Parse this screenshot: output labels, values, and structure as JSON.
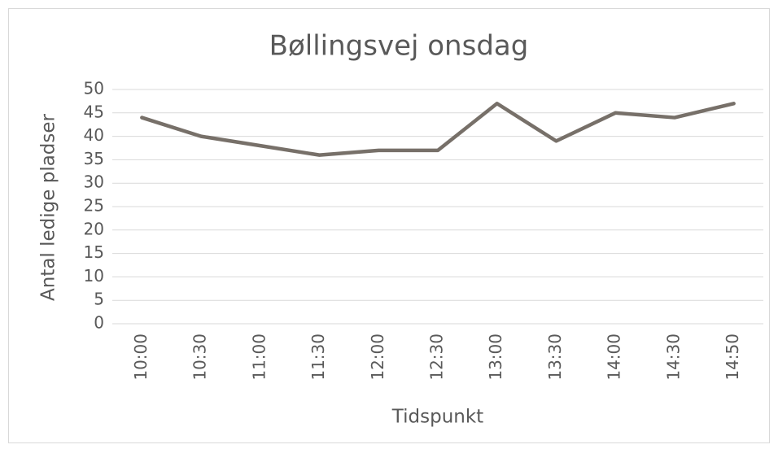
{
  "chart_data": {
    "type": "line",
    "title": "Bøllingsvej onsdag",
    "x_label": "Tidspunkt",
    "y_label": "Antal ledige pladser",
    "categories": [
      "10:00",
      "10:30",
      "11:00",
      "11:30",
      "12:00",
      "12:30",
      "13:00",
      "13:30",
      "14:00",
      "14:30",
      "14:50"
    ],
    "series": [
      {
        "name": "Antal ledige pladser",
        "color": "#777069",
        "values": [
          44,
          40,
          38,
          36,
          37,
          37,
          47,
          39,
          45,
          44,
          47
        ]
      }
    ],
    "ylim": [
      0,
      50
    ],
    "yticks": [
      0,
      5,
      10,
      15,
      20,
      25,
      30,
      35,
      40,
      45,
      50
    ],
    "grid": true
  }
}
